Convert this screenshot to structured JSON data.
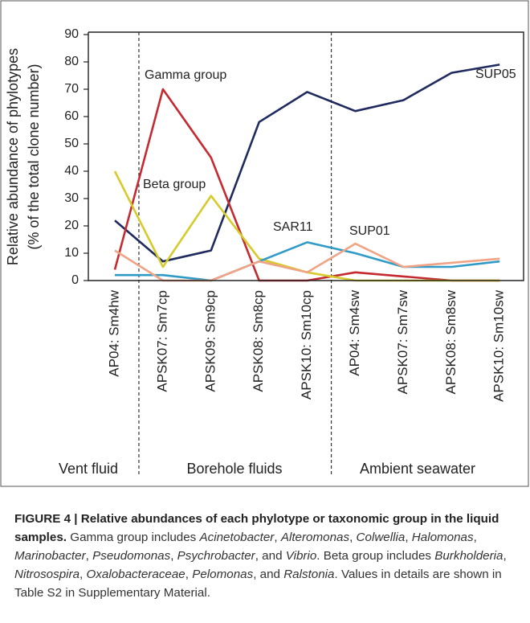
{
  "chart_data": {
    "type": "line",
    "y_label": [
      "Relative abundance of phylotypes",
      "(% of the total clone number)"
    ],
    "categories": [
      "AP04: Sm4hw",
      "APSK07: Sm7cp",
      "APSK09: Sm9cp",
      "APSK08: Sm8cp",
      "APSK10: Sm10cp",
      "AP04: Sm4sw",
      "APSK07: Sm7sw",
      "APSK08: Sm8sw",
      "APSK10: Sm10sw"
    ],
    "groups": [
      "Vent fluid",
      "Borehole fluids",
      "Ambient seawater"
    ],
    "series": [
      {
        "name": "SUP05",
        "color": "#1f2a5e",
        "values": [
          22,
          7,
          11,
          58,
          69,
          62,
          66,
          76,
          79
        ]
      },
      {
        "name": "Gamma group",
        "color": "#c42a30",
        "values": [
          4,
          70,
          45,
          0,
          0,
          3,
          1.5,
          0,
          0
        ]
      },
      {
        "name": "Beta group",
        "color": "#d6cb2c",
        "values": [
          40,
          5,
          31,
          8,
          3,
          0,
          0,
          0,
          0
        ]
      },
      {
        "name": "SAR11",
        "color": "#2f9bc6",
        "values": [
          2,
          2,
          0,
          7,
          14,
          10,
          5,
          5,
          7
        ]
      },
      {
        "name": "SUP01",
        "color": "#f0a385",
        "values": [
          11,
          0,
          0,
          7,
          3,
          13.5,
          5,
          6.5,
          8
        ]
      }
    ],
    "ylim": [
      0,
      90
    ],
    "yticks": [
      0,
      10,
      20,
      30,
      40,
      50,
      60,
      70,
      80,
      90
    ]
  },
  "caption": {
    "label": "FIGURE 4 | Relative abundances of each phylotype or taxonomic group in the liquid samples.",
    "body": [
      {
        "text": "Gamma group includes ",
        "italic": false
      },
      {
        "text": "Acinetobacter",
        "italic": true
      },
      {
        "text": ", ",
        "italic": false
      },
      {
        "text": "Alteromonas",
        "italic": true
      },
      {
        "text": ", ",
        "italic": false
      },
      {
        "text": "Colwellia",
        "italic": true
      },
      {
        "text": ", ",
        "italic": false
      },
      {
        "text": "Halomonas",
        "italic": true
      },
      {
        "text": ", ",
        "italic": false
      },
      {
        "text": "Marinobacter",
        "italic": true
      },
      {
        "text": ", ",
        "italic": false
      },
      {
        "text": "Pseudomonas",
        "italic": true
      },
      {
        "text": ", ",
        "italic": false
      },
      {
        "text": "Psychrobacter",
        "italic": true
      },
      {
        "text": ", and ",
        "italic": false
      },
      {
        "text": "Vibrio",
        "italic": true
      },
      {
        "text": ". Beta group includes ",
        "italic": false
      },
      {
        "text": "Burkholderia",
        "italic": true
      },
      {
        "text": ", ",
        "italic": false
      },
      {
        "text": "Nitrosospira",
        "italic": true
      },
      {
        "text": ", ",
        "italic": false
      },
      {
        "text": "Oxalobacteraceae",
        "italic": true
      },
      {
        "text": ", ",
        "italic": false
      },
      {
        "text": "Pelomonas",
        "italic": true
      },
      {
        "text": ", and ",
        "italic": false
      },
      {
        "text": "Ralstonia",
        "italic": true
      },
      {
        "text": ". Values in details are shown in Table S2 in Supplementary Material.",
        "italic": false
      }
    ]
  }
}
